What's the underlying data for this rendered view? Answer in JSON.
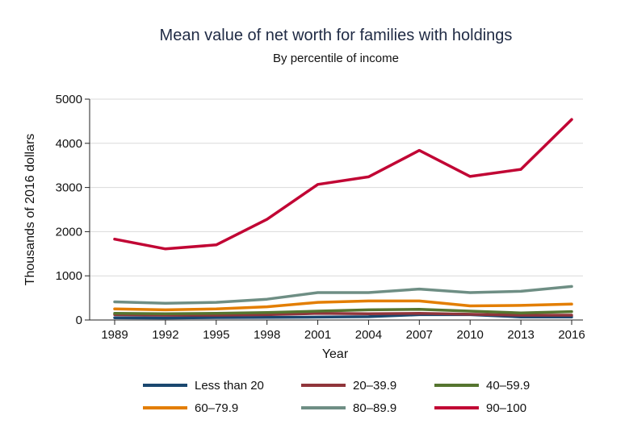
{
  "chart_data": {
    "type": "line",
    "title": "Mean value of net worth for families with holdings",
    "subtitle": "By percentile of income",
    "xlabel": "Year",
    "ylabel": "Thousands of 2016 dollars",
    "ylim": [
      0,
      5000
    ],
    "yticks": [
      "0",
      "1000",
      "2000",
      "3000",
      "4000",
      "5000"
    ],
    "grid": true,
    "legend_position": "bottom",
    "x": [
      "1989",
      "1992",
      "1995",
      "1998",
      "2001",
      "2004",
      "2007",
      "2010",
      "2013",
      "2016"
    ],
    "series": [
      {
        "name": "Less than 20",
        "color": "#1a476f",
        "values": [
          50,
          45,
          55,
          60,
          65,
          75,
          120,
          120,
          70,
          70
        ]
      },
      {
        "name": "20–39.9",
        "color": "#90353b",
        "values": [
          120,
          110,
          110,
          120,
          150,
          140,
          150,
          130,
          110,
          110
        ]
      },
      {
        "name": "40–59.9",
        "color": "#55752f",
        "values": [
          150,
          140,
          150,
          170,
          200,
          230,
          240,
          200,
          160,
          190
        ]
      },
      {
        "name": "60–79.9",
        "color": "#e37e00",
        "values": [
          250,
          230,
          250,
          300,
          400,
          430,
          430,
          320,
          330,
          360
        ]
      },
      {
        "name": "80–89.9",
        "color": "#6e8e84",
        "values": [
          410,
          380,
          400,
          470,
          620,
          620,
          700,
          620,
          650,
          760
        ]
      },
      {
        "name": "90–100",
        "color": "#c10534",
        "values": [
          1830,
          1610,
          1700,
          2280,
          3070,
          3240,
          3840,
          3250,
          3410,
          4540
        ]
      }
    ]
  }
}
